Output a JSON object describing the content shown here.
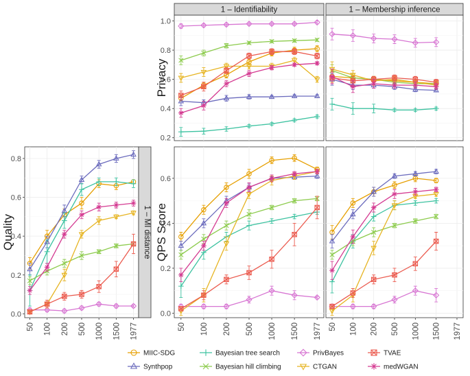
{
  "colors": {
    "MIIC-SDG": "#E69F00",
    "Synthpop": "#6B6BBD",
    "Bayesian tree search": "#3CC2A0",
    "Bayesian hill climbing": "#8CCB4C",
    "PrivBayes": "#D775D2",
    "CTGAN": "#E6B422",
    "TVAE": "#EB5B4F",
    "medWGAN": "#D43A91"
  },
  "strips": {
    "identifiability": "1 – Identifiability",
    "membership": "1 – Membership inference",
    "mi_distance": "1 – MI distance"
  },
  "axis_titles": {
    "privacy": "Privacy",
    "quality": "Quality",
    "qps": "QPS Score"
  },
  "legend_rows": [
    [
      "MIIC-SDG",
      "Bayesian tree search",
      "PrivBayes",
      "TVAE"
    ],
    [
      "Synthpop",
      "Bayesian hill climbing",
      "CTGAN",
      "medWGAN"
    ]
  ],
  "chart_data": [
    {
      "type": "line",
      "panel": "privacy-identifiability",
      "title": "1 – Identifiability",
      "ylabel": "Privacy",
      "x": [
        "50",
        "100",
        "200",
        "500",
        "1000",
        "1500",
        "1977"
      ],
      "ylim": [
        0.18,
        1.04
      ],
      "yticks": [
        0.2,
        0.4,
        0.6,
        0.8,
        1.0
      ],
      "ytick_labels": [
        "0.2",
        "0.4",
        "0.6",
        "0.8",
        "1.0"
      ],
      "series": [
        {
          "name": "MIIC-SDG",
          "values": [
            0.47,
            0.56,
            0.63,
            0.72,
            0.78,
            0.8,
            0.81
          ],
          "err": [
            0.02,
            0.02,
            0.02,
            0.02,
            0.02,
            0.02,
            0.02
          ]
        },
        {
          "name": "Synthpop",
          "values": [
            0.45,
            0.44,
            0.47,
            0.48,
            0.48,
            0.485,
            0.485
          ],
          "err": [
            0.03,
            0.02,
            0.02,
            0.015,
            0.01,
            0.01,
            0.01
          ]
        },
        {
          "name": "Bayesian tree search",
          "values": [
            0.24,
            0.245,
            0.26,
            0.28,
            0.295,
            0.32,
            0.345
          ],
          "err": [
            0.03,
            0.02,
            0.015,
            0.01,
            0.01,
            0.01,
            0.01
          ]
        },
        {
          "name": "Bayesian hill climbing",
          "values": [
            0.73,
            0.78,
            0.83,
            0.85,
            0.86,
            0.865,
            0.87
          ],
          "err": [
            0.03,
            0.02,
            0.015,
            0.01,
            0.01,
            0.01,
            0.01
          ]
        },
        {
          "name": "PrivBayes",
          "values": [
            0.965,
            0.97,
            0.975,
            0.98,
            0.98,
            0.98,
            0.99
          ],
          "err": [
            0.015,
            0.01,
            0.01,
            0.01,
            0.01,
            0.01,
            0.01
          ]
        },
        {
          "name": "CTGAN",
          "values": [
            0.61,
            0.65,
            0.69,
            0.69,
            0.69,
            0.73,
            0.6
          ],
          "err": [
            0.03,
            0.03,
            0.02,
            0.02,
            0.02,
            0.02,
            0.02
          ]
        },
        {
          "name": "TVAE",
          "values": [
            0.49,
            0.55,
            0.66,
            0.76,
            0.79,
            0.79,
            0.76
          ],
          "err": [
            0.03,
            0.03,
            0.02,
            0.02,
            0.02,
            0.02,
            0.02
          ]
        },
        {
          "name": "medWGAN",
          "values": [
            0.37,
            0.42,
            0.57,
            0.64,
            0.68,
            0.7,
            0.71
          ],
          "err": [
            0.03,
            0.03,
            0.02,
            0.02,
            0.015,
            0.01,
            0.01
          ]
        }
      ]
    },
    {
      "type": "line",
      "panel": "privacy-membership",
      "title": "1 – Membership inference",
      "x": [
        "50",
        "100",
        "200",
        "500",
        "1000",
        "1500",
        "1977"
      ],
      "ylim": [
        0.18,
        1.04
      ],
      "series": [
        {
          "name": "MIIC-SDG",
          "values": [
            0.62,
            0.61,
            0.6,
            0.59,
            0.58,
            0.57,
            null
          ],
          "err": [
            0.04,
            0.03,
            0.02,
            0.02,
            0.02,
            0.02,
            null
          ]
        },
        {
          "name": "Synthpop",
          "values": [
            0.6,
            0.56,
            0.56,
            0.55,
            0.53,
            0.525,
            null
          ],
          "err": [
            0.04,
            0.03,
            0.02,
            0.02,
            0.015,
            0.01,
            null
          ]
        },
        {
          "name": "Bayesian tree search",
          "values": [
            0.43,
            0.4,
            0.4,
            0.39,
            0.39,
            0.4,
            null
          ],
          "err": [
            0.04,
            0.04,
            0.03,
            0.01,
            0.01,
            0.01,
            null
          ]
        },
        {
          "name": "Bayesian hill climbing",
          "values": [
            0.66,
            0.61,
            0.6,
            0.58,
            0.57,
            0.57,
            null
          ],
          "err": [
            0.04,
            0.03,
            0.02,
            0.02,
            0.02,
            0.01,
            null
          ]
        },
        {
          "name": "PrivBayes",
          "values": [
            0.91,
            0.9,
            0.88,
            0.875,
            0.85,
            0.855,
            null
          ],
          "err": [
            0.04,
            0.04,
            0.03,
            0.03,
            0.03,
            0.03,
            null
          ]
        },
        {
          "name": "CTGAN",
          "values": [
            0.67,
            0.63,
            0.59,
            0.6,
            0.58,
            0.56,
            null
          ],
          "err": [
            0.05,
            0.03,
            0.03,
            0.02,
            0.02,
            0.02,
            null
          ]
        },
        {
          "name": "TVAE",
          "values": [
            0.61,
            0.59,
            0.6,
            0.61,
            0.6,
            0.58,
            null
          ],
          "err": [
            0.04,
            0.03,
            0.02,
            0.02,
            0.02,
            0.02,
            null
          ]
        },
        {
          "name": "medWGAN",
          "values": [
            0.62,
            0.55,
            0.57,
            0.56,
            0.56,
            0.55,
            null
          ],
          "err": [
            0.05,
            0.04,
            0.03,
            0.02,
            0.02,
            0.02,
            null
          ]
        }
      ]
    },
    {
      "type": "line",
      "panel": "quality-mi-distance",
      "title": "1 – MI distance",
      "ylabel": "Quality",
      "x": [
        "50",
        "100",
        "200",
        "500",
        "1000",
        "1500",
        "1977"
      ],
      "ylim": [
        -0.02,
        0.86
      ],
      "yticks": [
        0.0,
        0.2,
        0.4,
        0.6,
        0.8
      ],
      "ytick_labels": [
        "0.0",
        "0.2",
        "0.4",
        "0.6",
        "0.8"
      ],
      "series": [
        {
          "name": "MIIC-SDG",
          "values": [
            0.26,
            0.4,
            0.51,
            0.57,
            0.67,
            0.66,
            0.68
          ],
          "err": [
            0.03,
            0.03,
            0.03,
            0.03,
            0.02,
            0.02,
            0.01
          ]
        },
        {
          "name": "Synthpop",
          "values": [
            0.23,
            0.37,
            0.53,
            0.69,
            0.77,
            0.8,
            0.82
          ],
          "err": [
            0.03,
            0.03,
            0.03,
            0.02,
            0.02,
            0.02,
            0.02
          ]
        },
        {
          "name": "Bayesian tree search",
          "values": [
            0.12,
            0.32,
            0.48,
            0.64,
            0.68,
            0.68,
            0.67
          ],
          "err": [
            0.08,
            0.06,
            0.04,
            0.03,
            0.02,
            0.02,
            0.02
          ]
        },
        {
          "name": "Bayesian hill climbing",
          "values": [
            0.17,
            0.22,
            0.26,
            0.3,
            0.32,
            0.35,
            0.36
          ],
          "err": [
            0.02,
            0.02,
            0.02,
            0.02,
            0.01,
            0.01,
            0.01
          ]
        },
        {
          "name": "PrivBayes",
          "values": [
            0.02,
            0.02,
            0.015,
            0.03,
            0.05,
            0.04,
            0.04
          ],
          "err": [
            0.01,
            0.01,
            0.01,
            0.01,
            0.01,
            0.01,
            0.005
          ]
        },
        {
          "name": "CTGAN",
          "values": [
            0.01,
            0.05,
            0.2,
            0.41,
            0.48,
            0.5,
            0.52
          ],
          "err": [
            0.01,
            0.02,
            0.03,
            0.02,
            0.02,
            0.01,
            0.01
          ]
        },
        {
          "name": "TVAE",
          "values": [
            0.01,
            0.05,
            0.09,
            0.1,
            0.14,
            0.23,
            0.36
          ],
          "err": [
            0.01,
            0.02,
            0.02,
            0.02,
            0.03,
            0.04,
            0.05
          ]
        },
        {
          "name": "medWGAN",
          "values": [
            0.12,
            0.24,
            0.41,
            0.51,
            0.55,
            0.56,
            0.57
          ],
          "err": [
            0.02,
            0.02,
            0.02,
            0.02,
            0.02,
            0.015,
            0.015
          ]
        }
      ]
    },
    {
      "type": "line",
      "panel": "qps-identifiability",
      "ylabel": "QPS Score",
      "x": [
        "50",
        "100",
        "200",
        "500",
        "1000",
        "1500",
        "1977"
      ],
      "ylim": [
        -0.02,
        0.74
      ],
      "yticks": [
        0.0,
        0.2,
        0.4,
        0.6
      ],
      "ytick_labels": [
        "0.0",
        "0.2",
        "0.4",
        "0.6"
      ],
      "series": [
        {
          "name": "MIIC-SDG",
          "values": [
            0.34,
            0.46,
            0.56,
            0.62,
            0.68,
            0.69,
            0.64
          ],
          "err": [
            0.02,
            0.02,
            0.02,
            0.02,
            0.015,
            0.015,
            0.01
          ]
        },
        {
          "name": "Synthpop",
          "values": [
            0.3,
            0.4,
            0.5,
            0.56,
            0.6,
            0.605,
            0.61
          ],
          "err": [
            0.02,
            0.02,
            0.02,
            0.015,
            0.01,
            0.01,
            0.01
          ]
        },
        {
          "name": "Bayesian tree search",
          "values": [
            0.12,
            0.27,
            0.34,
            0.39,
            0.41,
            0.43,
            0.45
          ],
          "err": [
            0.05,
            0.03,
            0.02,
            0.02,
            0.01,
            0.01,
            0.01
          ]
        },
        {
          "name": "Bayesian hill climbing",
          "values": [
            0.26,
            0.33,
            0.39,
            0.44,
            0.47,
            0.5,
            0.51
          ],
          "err": [
            0.02,
            0.02,
            0.02,
            0.02,
            0.01,
            0.01,
            0.01
          ]
        },
        {
          "name": "PrivBayes",
          "values": [
            0.03,
            0.03,
            0.03,
            0.06,
            0.1,
            0.08,
            0.07
          ],
          "err": [
            0.01,
            0.01,
            0.01,
            0.015,
            0.02,
            0.02,
            0.005
          ]
        },
        {
          "name": "CTGAN",
          "values": [
            0.01,
            0.08,
            0.31,
            0.53,
            0.59,
            0.61,
            0.63
          ],
          "err": [
            0.02,
            0.03,
            0.03,
            0.02,
            0.02,
            0.015,
            0.01
          ]
        },
        {
          "name": "TVAE",
          "values": [
            0.02,
            0.08,
            0.15,
            0.18,
            0.24,
            0.35,
            0.47
          ],
          "err": [
            0.01,
            0.02,
            0.02,
            0.03,
            0.04,
            0.05,
            0.05
          ]
        },
        {
          "name": "medWGAN",
          "values": [
            0.17,
            0.3,
            0.49,
            0.56,
            0.6,
            0.62,
            0.63
          ],
          "err": [
            0.03,
            0.02,
            0.02,
            0.02,
            0.015,
            0.01,
            0.01
          ]
        }
      ]
    },
    {
      "type": "line",
      "panel": "qps-membership",
      "x": [
        "50",
        "100",
        "200",
        "500",
        "1000",
        "1500",
        "1977"
      ],
      "ylim": [
        -0.02,
        0.74
      ],
      "series": [
        {
          "name": "MIIC-SDG",
          "values": [
            0.36,
            0.49,
            0.54,
            0.57,
            0.6,
            0.59,
            null
          ],
          "err": [
            0.03,
            0.02,
            0.02,
            0.015,
            0.015,
            0.01,
            null
          ]
        },
        {
          "name": "Synthpop",
          "values": [
            0.32,
            0.44,
            0.54,
            0.61,
            0.62,
            0.63,
            null
          ],
          "err": [
            0.03,
            0.02,
            0.02,
            0.01,
            0.01,
            0.01,
            null
          ]
        },
        {
          "name": "Bayesian tree search",
          "values": [
            0.14,
            0.32,
            0.43,
            0.48,
            0.49,
            0.5,
            null
          ],
          "err": [
            0.05,
            0.03,
            0.02,
            0.02,
            0.01,
            0.01,
            null
          ]
        },
        {
          "name": "Bayesian hill climbing",
          "values": [
            0.26,
            0.32,
            0.36,
            0.39,
            0.41,
            0.43,
            null
          ],
          "err": [
            0.02,
            0.02,
            0.02,
            0.01,
            0.01,
            0.01,
            null
          ]
        },
        {
          "name": "PrivBayes",
          "values": [
            0.03,
            0.03,
            0.03,
            0.06,
            0.1,
            0.08,
            null
          ],
          "err": [
            0.01,
            0.01,
            0.01,
            0.015,
            0.02,
            0.03,
            null
          ]
        },
        {
          "name": "CTGAN",
          "values": [
            0.01,
            0.08,
            0.29,
            0.48,
            0.52,
            0.53,
            null
          ],
          "err": [
            0.02,
            0.03,
            0.03,
            0.02,
            0.01,
            0.01,
            null
          ]
        },
        {
          "name": "TVAE",
          "values": [
            0.03,
            0.09,
            0.15,
            0.17,
            0.22,
            0.32,
            null
          ],
          "err": [
            0.01,
            0.02,
            0.02,
            0.03,
            0.03,
            0.04,
            null
          ]
        },
        {
          "name": "medWGAN",
          "values": [
            0.19,
            0.34,
            0.47,
            0.53,
            0.54,
            0.55,
            null
          ],
          "err": [
            0.04,
            0.03,
            0.02,
            0.02,
            0.015,
            0.01,
            null
          ]
        }
      ]
    }
  ]
}
